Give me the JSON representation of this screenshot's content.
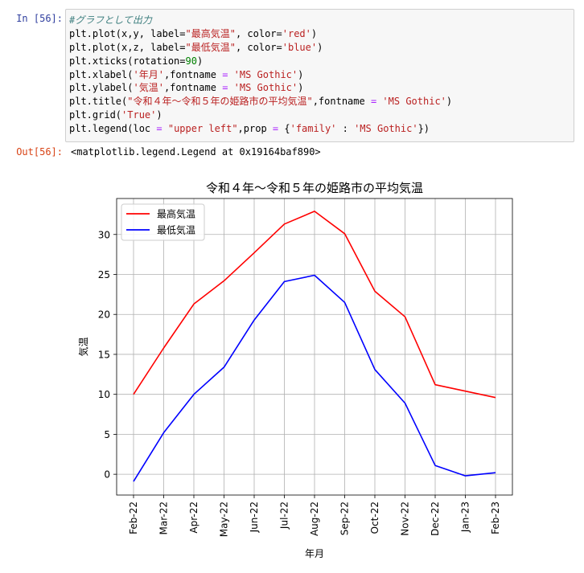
{
  "cell": {
    "in_prompt": "In [56]:",
    "out_prompt": "Out[56]:",
    "output_text": "<matplotlib.legend.Legend at 0x19164baf890>",
    "code_lines": [
      [
        {
          "t": "#グラフとして出力",
          "c": "com"
        }
      ],
      [
        {
          "t": "plt.plot(x,y, label=",
          "c": ""
        },
        {
          "t": "\"最高気温\"",
          "c": "str"
        },
        {
          "t": ", color=",
          "c": ""
        },
        {
          "t": "'red'",
          "c": "str"
        },
        {
          "t": ")",
          "c": ""
        }
      ],
      [
        {
          "t": "plt.plot(x,z, label=",
          "c": ""
        },
        {
          "t": "\"最低気温\"",
          "c": "str"
        },
        {
          "t": ", color=",
          "c": ""
        },
        {
          "t": "'blue'",
          "c": "str"
        },
        {
          "t": ")",
          "c": ""
        }
      ],
      [
        {
          "t": "plt.xticks(rotation=",
          "c": ""
        },
        {
          "t": "90",
          "c": "num"
        },
        {
          "t": ")",
          "c": ""
        }
      ],
      [
        {
          "t": "plt.xlabel(",
          "c": ""
        },
        {
          "t": "'年月'",
          "c": "str"
        },
        {
          "t": ",fontname ",
          "c": ""
        },
        {
          "t": "=",
          "c": "op"
        },
        {
          "t": " ",
          "c": ""
        },
        {
          "t": "'MS Gothic'",
          "c": "str"
        },
        {
          "t": ")",
          "c": ""
        }
      ],
      [
        {
          "t": "plt.ylabel(",
          "c": ""
        },
        {
          "t": "'気温'",
          "c": "str"
        },
        {
          "t": ",fontname ",
          "c": ""
        },
        {
          "t": "=",
          "c": "op"
        },
        {
          "t": " ",
          "c": ""
        },
        {
          "t": "'MS Gothic'",
          "c": "str"
        },
        {
          "t": ")",
          "c": ""
        }
      ],
      [
        {
          "t": "plt.title(",
          "c": ""
        },
        {
          "t": "\"令和４年～令和５年の姫路市の平均気温\"",
          "c": "str"
        },
        {
          "t": ",fontname ",
          "c": ""
        },
        {
          "t": "=",
          "c": "op"
        },
        {
          "t": " ",
          "c": ""
        },
        {
          "t": "'MS Gothic'",
          "c": "str"
        },
        {
          "t": ")",
          "c": ""
        }
      ],
      [
        {
          "t": "plt.grid(",
          "c": ""
        },
        {
          "t": "'True'",
          "c": "str"
        },
        {
          "t": ")",
          "c": ""
        }
      ],
      [
        {
          "t": "plt.legend(loc ",
          "c": ""
        },
        {
          "t": "=",
          "c": "op"
        },
        {
          "t": " ",
          "c": ""
        },
        {
          "t": "\"upper left\"",
          "c": "str"
        },
        {
          "t": ",prop ",
          "c": ""
        },
        {
          "t": "=",
          "c": "op"
        },
        {
          "t": " {",
          "c": ""
        },
        {
          "t": "'family'",
          "c": "str"
        },
        {
          "t": " : ",
          "c": ""
        },
        {
          "t": "'MS Gothic'",
          "c": "str"
        },
        {
          "t": "})",
          "c": ""
        }
      ]
    ]
  },
  "colors": {
    "comment": "#408080",
    "string": "#ba2121",
    "operator": "#aa22ff",
    "number": "#008000",
    "in_prompt": "#303f9f",
    "out_prompt": "#d84315",
    "grid": "#b0b0b0"
  },
  "chart_data": {
    "type": "line",
    "title": "令和４年～令和５年の姫路市の平均気温",
    "xlabel": "年月",
    "ylabel": "気温",
    "categories": [
      "Feb-22",
      "Mar-22",
      "Apr-22",
      "May-22",
      "Jun-22",
      "Jul-22",
      "Aug-22",
      "Sep-22",
      "Oct-22",
      "Nov-22",
      "Dec-22",
      "Jan-23",
      "Feb-23"
    ],
    "series": [
      {
        "name": "最高気温",
        "color": "#ff0000",
        "values": [
          10.0,
          15.8,
          21.3,
          24.2,
          27.7,
          31.3,
          32.9,
          30.1,
          22.9,
          19.7,
          11.2,
          10.4,
          9.6
        ]
      },
      {
        "name": "最低気温",
        "color": "#0000ff",
        "values": [
          -0.9,
          5.2,
          10.0,
          13.4,
          19.3,
          24.1,
          24.9,
          21.5,
          13.1,
          8.9,
          1.1,
          -0.2,
          0.2
        ]
      }
    ],
    "yticks": [
      0,
      5,
      10,
      15,
      20,
      25,
      30
    ],
    "ylim": [
      -2.6,
      34.5
    ],
    "grid": true,
    "legend": "upper left",
    "x_tick_rotation": 90
  }
}
